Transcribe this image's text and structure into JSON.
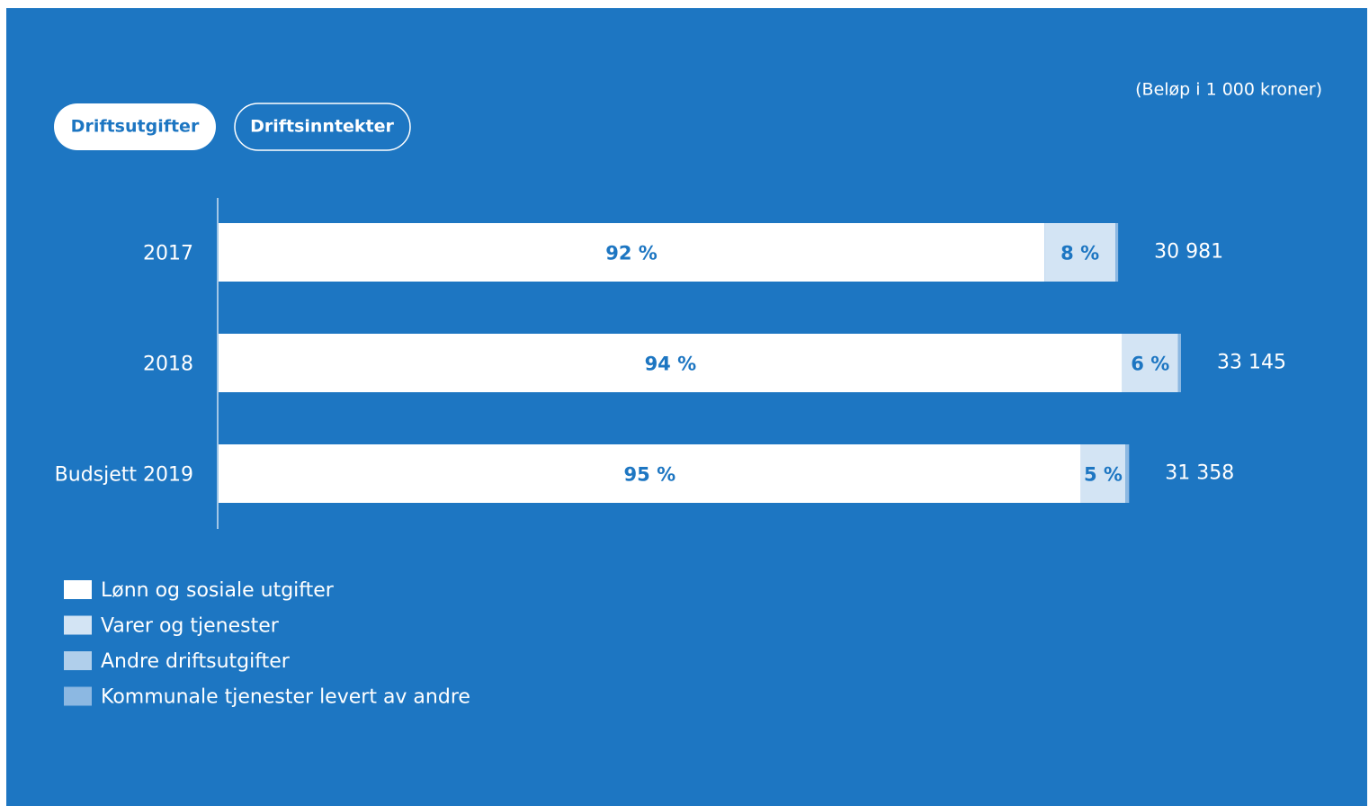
{
  "tabs": [
    "Driftsutgifter",
    "Driftsinntekter"
  ],
  "chart_data": {
    "type": "bar",
    "orientation": "horizontal",
    "note": "(Beløp i 1 000 kroner)",
    "categories": [
      "2017",
      "2018",
      "Budsjett 2019"
    ],
    "totals": [
      30981,
      33145,
      31358
    ],
    "total_labels": [
      "30 981",
      "33 145",
      "31 358"
    ],
    "series": [
      {
        "name": "Lønn og sosiale utgifter",
        "color": "#ffffff",
        "values": [
          91.8,
          93.9,
          94.7
        ],
        "value_labels": [
          "92 %",
          "94 %",
          "95 %"
        ]
      },
      {
        "name": "Varer og tjenester",
        "color": "#d3e4f4",
        "values": [
          7.9,
          5.8,
          4.9
        ],
        "value_labels": [
          "8 %",
          "6 %",
          "5 %"
        ]
      },
      {
        "name": "Andre driftsutgifter",
        "color": "#b0cfeb",
        "values": [
          0,
          0,
          0
        ]
      },
      {
        "name": "Kommunale tjenester levert av andre",
        "color": "#8cb8e2",
        "values": [
          0.3,
          0.3,
          0.4
        ]
      }
    ]
  }
}
